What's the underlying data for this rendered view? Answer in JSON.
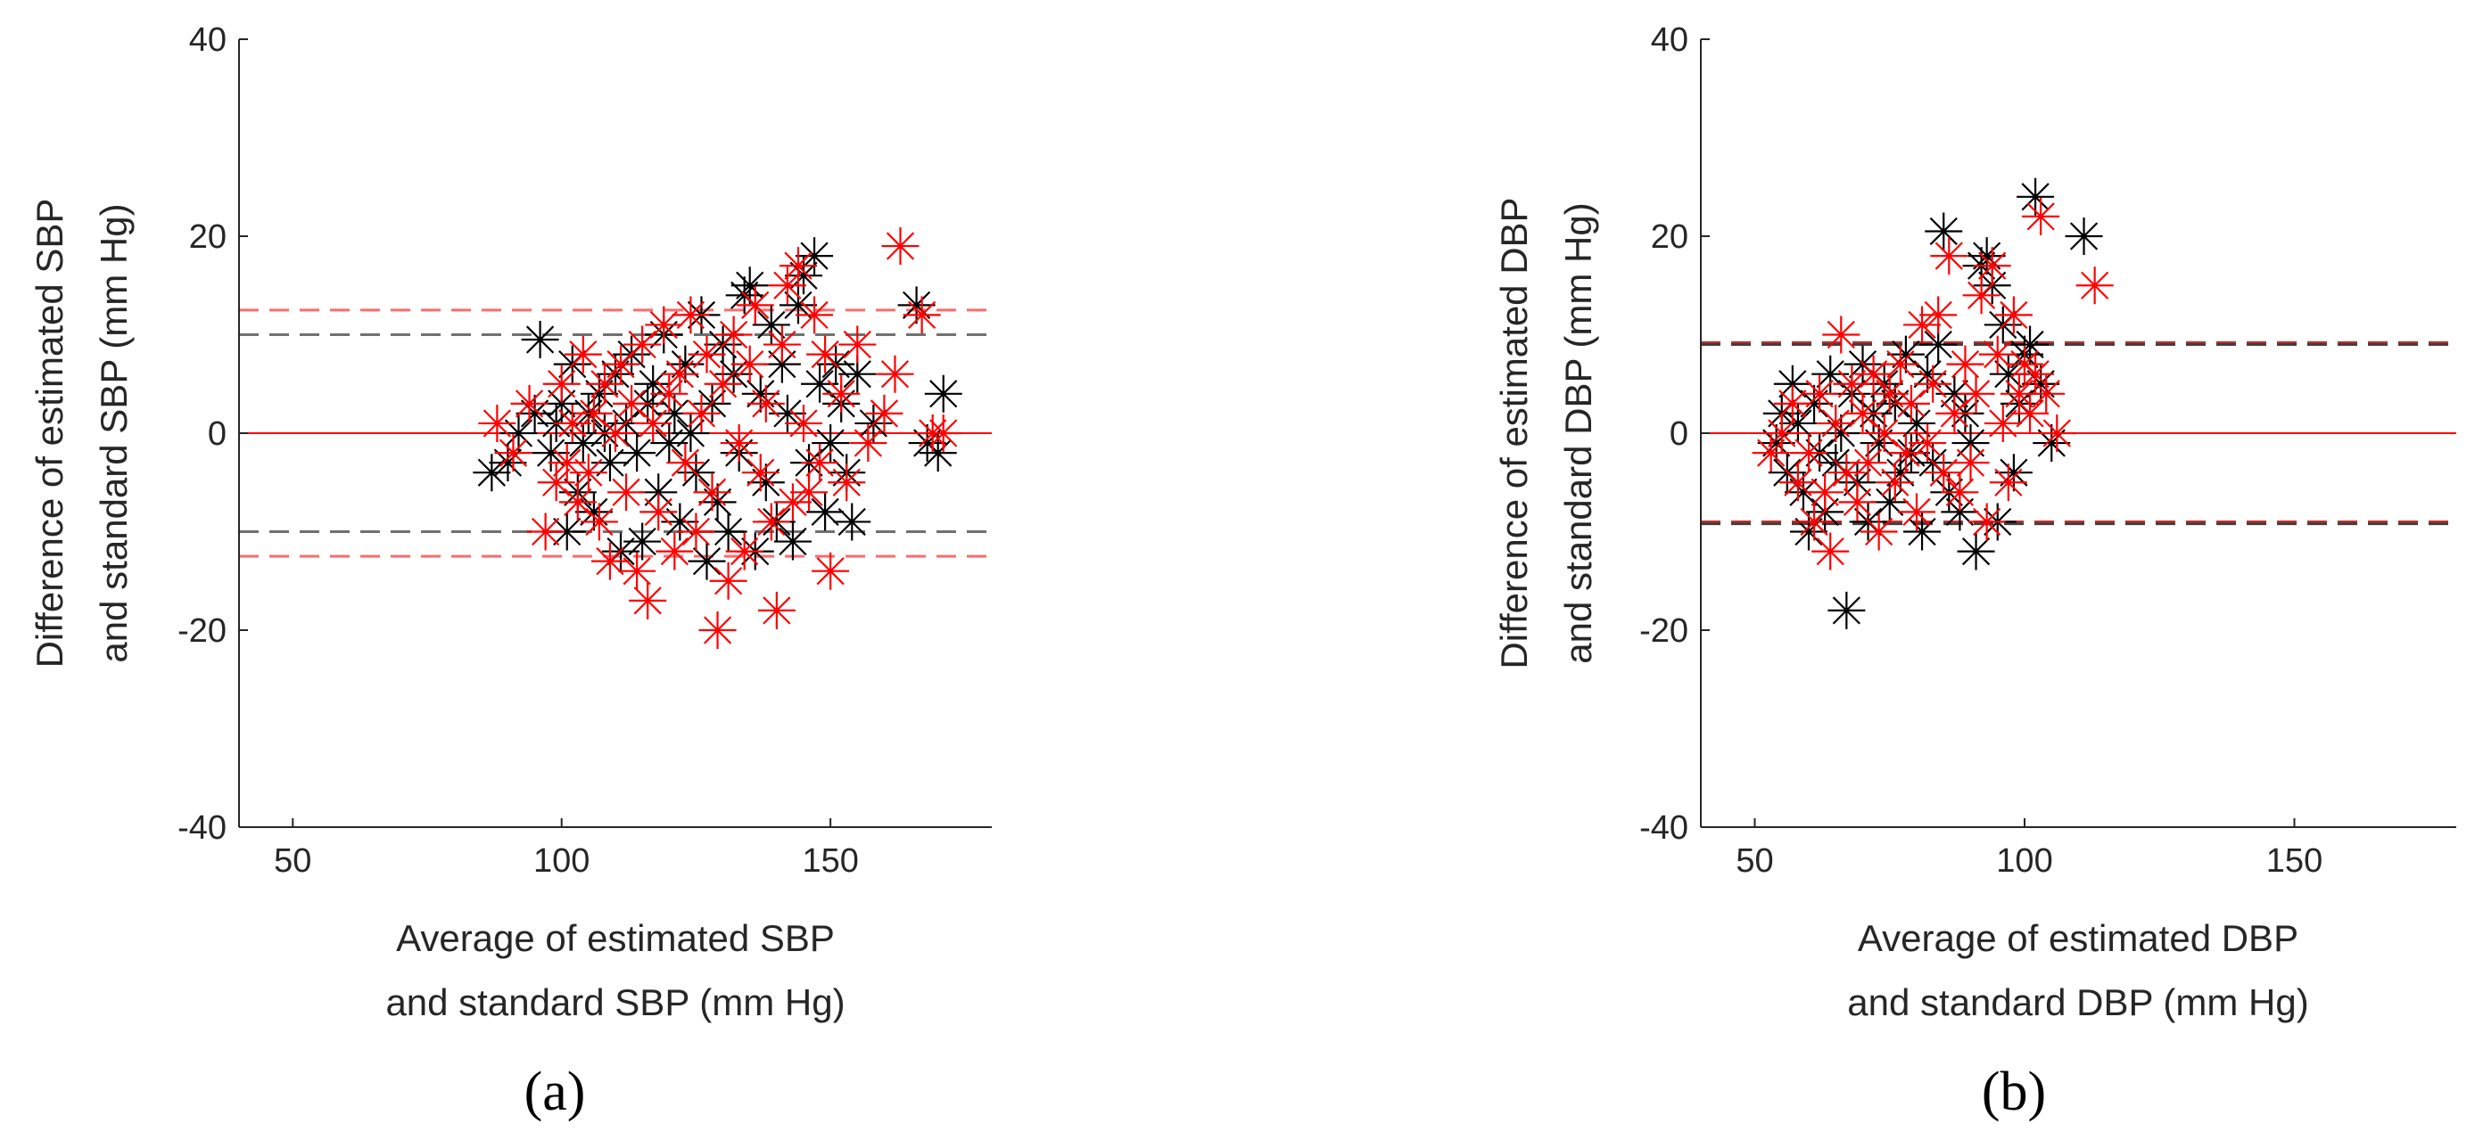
{
  "chart_data": [
    {
      "type": "scatter",
      "panel_label": "(a)",
      "xlabel": [
        "Average of estimated SBP",
        "and standard SBP (mm Hg)"
      ],
      "ylabel": [
        "Difference of estimated SBP",
        "and standard SBP (mm Hg)"
      ],
      "xlim": [
        40,
        180
      ],
      "ylim": [
        -40,
        40
      ],
      "xticks": [
        50,
        100,
        150
      ],
      "xtick_labels": [
        "50",
        "100",
        "150"
      ],
      "yticks": [
        -40,
        -20,
        0,
        20,
        40
      ],
      "ytick_labels": [
        "-40",
        "-20",
        "0",
        "20",
        "40"
      ],
      "grid": false,
      "mean_line": {
        "y": 0,
        "color": "#ff0000",
        "style": "solid"
      },
      "limit_lines": [
        {
          "y": 12.5,
          "color": "#ff6b6b",
          "style": "dashed"
        },
        {
          "y": -12.5,
          "color": "#ff6b6b",
          "style": "dashed"
        },
        {
          "y": 10,
          "color": "#707070",
          "style": "dashed"
        },
        {
          "y": -10,
          "color": "#707070",
          "style": "dashed"
        }
      ],
      "series": [
        {
          "name": "black",
          "marker": "asterisk",
          "color": "#000000",
          "points": [
            [
              87,
              -4
            ],
            [
              90,
              -3
            ],
            [
              92,
              0
            ],
            [
              95,
              2
            ],
            [
              96,
              9.5
            ],
            [
              98,
              -2
            ],
            [
              99,
              1
            ],
            [
              100,
              3
            ],
            [
              101,
              -10
            ],
            [
              102,
              7
            ],
            [
              103,
              -6
            ],
            [
              104,
              -1
            ],
            [
              105,
              2
            ],
            [
              106,
              -8
            ],
            [
              107,
              4
            ],
            [
              108,
              0
            ],
            [
              109,
              -3
            ],
            [
              110,
              6
            ],
            [
              111,
              -12
            ],
            [
              112,
              1
            ],
            [
              113,
              8
            ],
            [
              114,
              -2
            ],
            [
              115,
              -11
            ],
            [
              116,
              3
            ],
            [
              117,
              5
            ],
            [
              118,
              -6
            ],
            [
              119,
              10
            ],
            [
              120,
              -1
            ],
            [
              121,
              2
            ],
            [
              122,
              -9
            ],
            [
              123,
              7
            ],
            [
              124,
              0
            ],
            [
              125,
              -4
            ],
            [
              126,
              12
            ],
            [
              127,
              -13
            ],
            [
              128,
              3
            ],
            [
              129,
              -7
            ],
            [
              130,
              9
            ],
            [
              131,
              -10
            ],
            [
              132,
              6
            ],
            [
              133,
              -2
            ],
            [
              134,
              14
            ],
            [
              135,
              15
            ],
            [
              136,
              -12
            ],
            [
              137,
              4
            ],
            [
              138,
              -5
            ],
            [
              139,
              11
            ],
            [
              140,
              -9
            ],
            [
              141,
              7
            ],
            [
              142,
              2
            ],
            [
              143,
              -11
            ],
            [
              144,
              13
            ],
            [
              145,
              16
            ],
            [
              146,
              -3
            ],
            [
              147,
              18
            ],
            [
              148,
              5
            ],
            [
              149,
              -8
            ],
            [
              150,
              -1
            ],
            [
              151,
              7
            ],
            [
              152,
              3
            ],
            [
              153,
              -4
            ],
            [
              154,
              -9
            ],
            [
              155,
              6
            ],
            [
              158,
              1
            ],
            [
              166,
              13
            ],
            [
              168,
              -1
            ],
            [
              170,
              -2
            ],
            [
              171,
              4
            ]
          ]
        },
        {
          "name": "red",
          "marker": "asterisk",
          "color": "#ff0000",
          "points": [
            [
              88,
              1
            ],
            [
              91,
              -2
            ],
            [
              94,
              3
            ],
            [
              97,
              -10
            ],
            [
              99,
              -5
            ],
            [
              100,
              5
            ],
            [
              101,
              -3
            ],
            [
              102,
              1
            ],
            [
              103,
              -7
            ],
            [
              104,
              8
            ],
            [
              105,
              -4
            ],
            [
              106,
              2
            ],
            [
              107,
              -9
            ],
            [
              108,
              5
            ],
            [
              109,
              -13
            ],
            [
              110,
              0
            ],
            [
              111,
              7
            ],
            [
              112,
              -6
            ],
            [
              113,
              3
            ],
            [
              114,
              -14
            ],
            [
              115,
              9
            ],
            [
              116,
              -17
            ],
            [
              117,
              1
            ],
            [
              118,
              -8
            ],
            [
              119,
              11
            ],
            [
              120,
              4
            ],
            [
              121,
              -12
            ],
            [
              122,
              6
            ],
            [
              123,
              -3
            ],
            [
              124,
              12
            ],
            [
              125,
              -10
            ],
            [
              126,
              2
            ],
            [
              127,
              8
            ],
            [
              128,
              -6
            ],
            [
              129,
              -20
            ],
            [
              130,
              5
            ],
            [
              131,
              -15
            ],
            [
              132,
              10
            ],
            [
              133,
              -1
            ],
            [
              134,
              -12
            ],
            [
              135,
              7
            ],
            [
              136,
              13
            ],
            [
              137,
              -4
            ],
            [
              138,
              3
            ],
            [
              139,
              -9
            ],
            [
              140,
              -18
            ],
            [
              141,
              9
            ],
            [
              142,
              15
            ],
            [
              143,
              -7
            ],
            [
              144,
              17
            ],
            [
              145,
              1
            ],
            [
              146,
              -6
            ],
            [
              147,
              12
            ],
            [
              148,
              -3
            ],
            [
              149,
              8
            ],
            [
              150,
              -14
            ],
            [
              152,
              4
            ],
            [
              153,
              -5
            ],
            [
              155,
              9
            ],
            [
              157,
              -1
            ],
            [
              160,
              2
            ],
            [
              162,
              6
            ],
            [
              163,
              19
            ],
            [
              167,
              12
            ],
            [
              169,
              0
            ],
            [
              171,
              0
            ]
          ]
        }
      ]
    },
    {
      "type": "scatter",
      "panel_label": "(b)",
      "xlabel": [
        "Average of estimated DBP",
        "and standard DBP (mm Hg)"
      ],
      "ylabel": [
        "Difference of estimated DBP",
        "and standard DBP (mm Hg)"
      ],
      "xlim": [
        40,
        180
      ],
      "ylim": [
        -40,
        40
      ],
      "xticks": [
        50,
        100,
        150
      ],
      "xtick_labels": [
        "50",
        "100",
        "150"
      ],
      "yticks": [
        -40,
        -20,
        0,
        20,
        40
      ],
      "ytick_labels": [
        "-40",
        "-20",
        "0",
        "20",
        "40"
      ],
      "grid": false,
      "mean_line": {
        "y": 0,
        "color": "#ff0000",
        "style": "solid"
      },
      "limit_lines": [
        {
          "y": 9.2,
          "color": "#cc2a2a",
          "style": "dashed"
        },
        {
          "y": 9.0,
          "color": "#404040",
          "style": "dashed"
        },
        {
          "y": -9.0,
          "color": "#cc2a2a",
          "style": "dashed"
        },
        {
          "y": -9.2,
          "color": "#404040",
          "style": "dashed"
        }
      ],
      "series": [
        {
          "name": "black",
          "marker": "asterisk",
          "color": "#000000",
          "points": [
            [
              54,
              -1
            ],
            [
              55,
              2
            ],
            [
              56,
              -4
            ],
            [
              57,
              5
            ],
            [
              58,
              1
            ],
            [
              59,
              -6
            ],
            [
              60,
              -10
            ],
            [
              61,
              3
            ],
            [
              62,
              -2
            ],
            [
              63,
              -8
            ],
            [
              64,
              6
            ],
            [
              65,
              -3
            ],
            [
              66,
              0
            ],
            [
              67,
              -18
            ],
            [
              68,
              4
            ],
            [
              69,
              -5
            ],
            [
              70,
              7
            ],
            [
              71,
              -9
            ],
            [
              72,
              2
            ],
            [
              73,
              -1
            ],
            [
              74,
              5
            ],
            [
              75,
              -7
            ],
            [
              76,
              3
            ],
            [
              77,
              -4
            ],
            [
              78,
              8
            ],
            [
              79,
              -2
            ],
            [
              80,
              1
            ],
            [
              81,
              -10
            ],
            [
              82,
              6
            ],
            [
              83,
              -3
            ],
            [
              84,
              9
            ],
            [
              85,
              20.5
            ],
            [
              86,
              -6
            ],
            [
              87,
              4
            ],
            [
              88,
              -8
            ],
            [
              89,
              2
            ],
            [
              90,
              -1
            ],
            [
              91,
              -12
            ],
            [
              92,
              17
            ],
            [
              93,
              18
            ],
            [
              94,
              15
            ],
            [
              95,
              -9
            ],
            [
              96,
              11
            ],
            [
              97,
              6
            ],
            [
              98,
              -4
            ],
            [
              99,
              3
            ],
            [
              100,
              8
            ],
            [
              101,
              9
            ],
            [
              102,
              24
            ],
            [
              103,
              5
            ],
            [
              105,
              -1
            ],
            [
              111,
              20
            ]
          ]
        },
        {
          "name": "red",
          "marker": "asterisk",
          "color": "#ff0000",
          "points": [
            [
              53,
              -2
            ],
            [
              55,
              0
            ],
            [
              57,
              3
            ],
            [
              58,
              -5
            ],
            [
              60,
              -2
            ],
            [
              61,
              -9
            ],
            [
              62,
              4
            ],
            [
              63,
              -6
            ],
            [
              64,
              -12
            ],
            [
              65,
              1
            ],
            [
              66,
              10
            ],
            [
              67,
              -4
            ],
            [
              68,
              5
            ],
            [
              69,
              -7
            ],
            [
              70,
              2
            ],
            [
              71,
              -3
            ],
            [
              72,
              6
            ],
            [
              73,
              -10
            ],
            [
              74,
              0
            ],
            [
              75,
              4
            ],
            [
              76,
              -5
            ],
            [
              77,
              7
            ],
            [
              78,
              -2
            ],
            [
              79,
              3
            ],
            [
              80,
              -8
            ],
            [
              81,
              11
            ],
            [
              82,
              -1
            ],
            [
              83,
              5
            ],
            [
              84,
              12
            ],
            [
              85,
              -4
            ],
            [
              86,
              18
            ],
            [
              87,
              2
            ],
            [
              88,
              -6
            ],
            [
              89,
              7
            ],
            [
              90,
              -3
            ],
            [
              91,
              4
            ],
            [
              92,
              14
            ],
            [
              93,
              -9
            ],
            [
              94,
              17
            ],
            [
              95,
              8
            ],
            [
              96,
              1
            ],
            [
              97,
              -5
            ],
            [
              98,
              12
            ],
            [
              99,
              4
            ],
            [
              100,
              7
            ],
            [
              101,
              2
            ],
            [
              102,
              6
            ],
            [
              103,
              22
            ],
            [
              104,
              4
            ],
            [
              106,
              0
            ],
            [
              113,
              15
            ]
          ]
        }
      ]
    }
  ]
}
